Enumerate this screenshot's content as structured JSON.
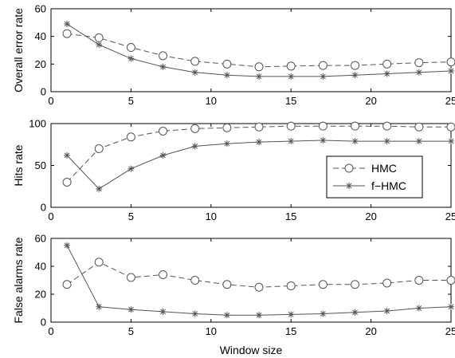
{
  "chart_data": [
    {
      "type": "line",
      "ylabel": "Overall error rate",
      "xlim": [
        0,
        25
      ],
      "ylim": [
        0,
        60
      ],
      "xticks": [
        "0",
        "5",
        "10",
        "15",
        "20",
        "25"
      ],
      "yticks": [
        "0",
        "20",
        "40",
        "60"
      ],
      "x": [
        1,
        3,
        5,
        7,
        9,
        11,
        13,
        15,
        17,
        19,
        21,
        23,
        25
      ],
      "series": [
        {
          "name": "HMC",
          "marker": "circle",
          "dash": true,
          "values": [
            42,
            39,
            32,
            26,
            22,
            20,
            18,
            18.5,
            19,
            19,
            20,
            21,
            21.5
          ]
        },
        {
          "name": "f−HMC",
          "marker": "star",
          "dash": false,
          "values": [
            49,
            34,
            24,
            18,
            14,
            12,
            11,
            11,
            11,
            12,
            13,
            14,
            15
          ]
        }
      ]
    },
    {
      "type": "line",
      "ylabel": "Hits rate",
      "xlim": [
        0,
        25
      ],
      "ylim": [
        0,
        100
      ],
      "xticks": [
        "0",
        "5",
        "10",
        "15",
        "20",
        "25"
      ],
      "yticks": [
        "0",
        "50",
        "100"
      ],
      "x": [
        1,
        3,
        5,
        7,
        9,
        11,
        13,
        15,
        17,
        19,
        21,
        23,
        25
      ],
      "legend": {
        "placement": "center-right",
        "entries": [
          "HMC",
          "f−HMC"
        ]
      },
      "series": [
        {
          "name": "HMC",
          "marker": "circle",
          "dash": true,
          "values": [
            30,
            70,
            84,
            91,
            94,
            95,
            96,
            97,
            97,
            97,
            97,
            96,
            96
          ]
        },
        {
          "name": "f−HMC",
          "marker": "star",
          "dash": false,
          "values": [
            62,
            22,
            46,
            62,
            73,
            76,
            78,
            79,
            80,
            79,
            79,
            79,
            79
          ]
        }
      ]
    },
    {
      "type": "line",
      "ylabel": "False alarms rate",
      "xlabel": "Window size",
      "xlim": [
        0,
        25
      ],
      "ylim": [
        0,
        60
      ],
      "xticks": [
        "0",
        "5",
        "10",
        "15",
        "20",
        "25"
      ],
      "yticks": [
        "0",
        "20",
        "40",
        "60"
      ],
      "x": [
        1,
        3,
        5,
        7,
        9,
        11,
        13,
        15,
        17,
        19,
        21,
        23,
        25
      ],
      "series": [
        {
          "name": "HMC",
          "marker": "circle",
          "dash": true,
          "values": [
            27,
            43,
            32,
            34,
            30,
            27,
            25,
            26,
            27,
            27,
            28,
            30,
            30
          ]
        },
        {
          "name": "f−HMC",
          "marker": "star",
          "dash": false,
          "values": [
            55,
            11,
            9,
            7.5,
            6,
            5,
            5,
            5.5,
            6,
            7,
            8,
            10,
            11
          ]
        }
      ]
    }
  ],
  "colors": {
    "hmc": "#555555",
    "fhmc": "#555555",
    "axis": "#000000"
  }
}
